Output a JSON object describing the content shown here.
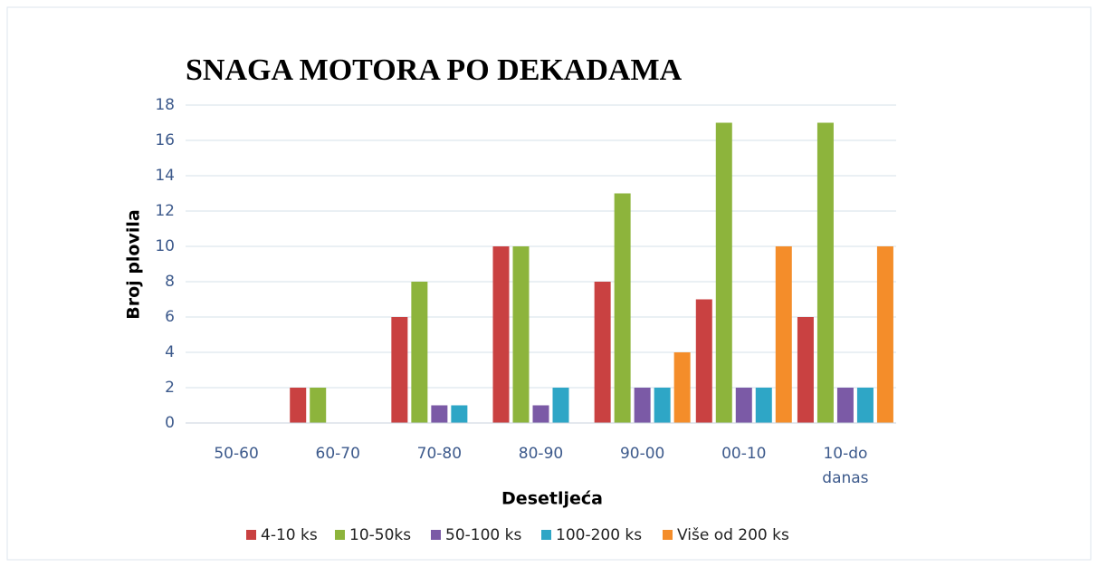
{
  "chart_data": {
    "type": "bar",
    "title": "SNAGA MOTORA PO DEKADAMA",
    "x_label": "Desetljeća",
    "y_label": "Broj plovila",
    "categories": [
      "50-60",
      "60-70",
      "70-80",
      "80-90",
      "90-00",
      "00-10",
      "10-do danas"
    ],
    "series": [
      {
        "name": "4-10 ks",
        "color": "#c94141",
        "values": [
          0,
          2,
          6,
          10,
          8,
          7,
          6
        ]
      },
      {
        "name": "10-50ks",
        "color": "#8db43c",
        "values": [
          0,
          2,
          8,
          10,
          13,
          17,
          17
        ]
      },
      {
        "name": "50-100 ks",
        "color": "#7b5aa6",
        "values": [
          0,
          0,
          1,
          1,
          2,
          2,
          2
        ]
      },
      {
        "name": "100-200 ks",
        "color": "#2ea6c6",
        "values": [
          0,
          0,
          1,
          2,
          2,
          2,
          2
        ]
      },
      {
        "name": "Više od 200 ks",
        "color": "#f48d2a",
        "values": [
          0,
          0,
          0,
          0,
          4,
          10,
          10
        ]
      }
    ],
    "ylim": [
      0,
      18
    ],
    "yticks": [
      0,
      2,
      4,
      6,
      8,
      10,
      12,
      14,
      16,
      18
    ],
    "grid": true,
    "legend": "bottom"
  }
}
